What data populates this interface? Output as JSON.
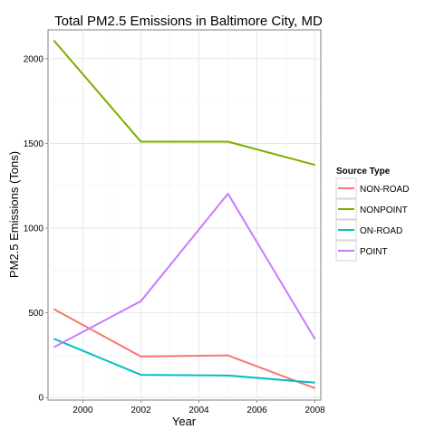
{
  "chart_data": {
    "type": "line",
    "title": "Total PM2.5 Emissions in Baltimore City, MD",
    "xlabel": "Year",
    "ylabel": "PM2.5 Emissions (Tons)",
    "x": [
      1999,
      2002,
      2005,
      2008
    ],
    "xlim": [
      1998.8,
      2008.2
    ],
    "ylim": [
      -15,
      2170
    ],
    "xticks": [
      2000,
      2002,
      2004,
      2006,
      2008
    ],
    "yticks": [
      0,
      500,
      1000,
      1500,
      2000
    ],
    "grid": true,
    "legend": {
      "title": "Source Type",
      "placement": "right"
    },
    "series": [
      {
        "name": "NON-ROAD",
        "color": "#F8766D",
        "values": [
          522,
          242,
          249,
          55
        ]
      },
      {
        "name": "NONPOINT",
        "color": "#7CAE00",
        "values": [
          2108,
          1510,
          1510,
          1373
        ]
      },
      {
        "name": "ON-ROAD",
        "color": "#00BFC4",
        "values": [
          347,
          134,
          130,
          88
        ]
      },
      {
        "name": "POINT",
        "color": "#C77CFF",
        "values": [
          297,
          569,
          1203,
          345
        ]
      }
    ]
  }
}
